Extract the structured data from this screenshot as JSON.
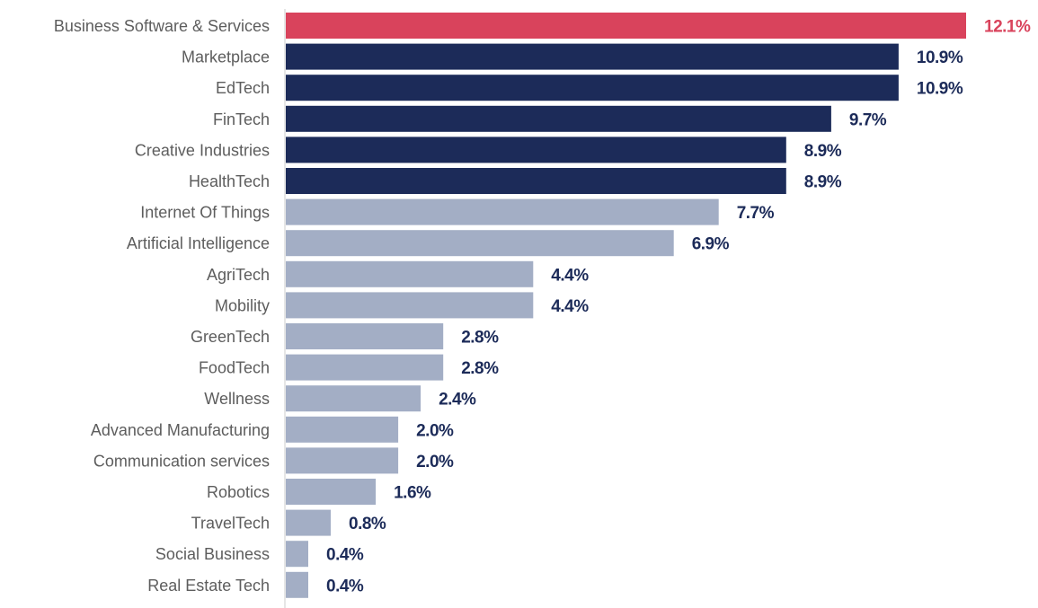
{
  "chart_data": {
    "type": "bar",
    "orientation": "horizontal",
    "categories": [
      "Business Software & Services",
      "Marketplace",
      "EdTech",
      "FinTech",
      "Creative Industries",
      "HealthTech",
      "Internet Of Things",
      "Artificial Intelligence",
      "AgriTech",
      "Mobility",
      "GreenTech",
      "FoodTech",
      "Wellness",
      "Advanced Manufacturing",
      "Communication services",
      "Robotics",
      "TravelTech",
      "Social Business",
      "Real Estate Tech"
    ],
    "values": [
      12.1,
      10.9,
      10.9,
      9.7,
      8.9,
      8.9,
      7.7,
      6.9,
      4.4,
      4.4,
      2.8,
      2.8,
      2.4,
      2.0,
      2.0,
      1.6,
      0.8,
      0.4,
      0.4
    ],
    "value_labels": [
      "12.1%",
      "10.9%",
      "10.9%",
      "9.7%",
      "8.9%",
      "8.9%",
      "7.7%",
      "6.9%",
      "4.4%",
      "4.4%",
      "2.8%",
      "2.8%",
      "2.4%",
      "2.0%",
      "2.0%",
      "1.6%",
      "0.8%",
      "0.4%",
      "0.4%"
    ],
    "tiers": [
      "highlight",
      "top",
      "top",
      "top",
      "top",
      "top",
      "rest",
      "rest",
      "rest",
      "rest",
      "rest",
      "rest",
      "rest",
      "rest",
      "rest",
      "rest",
      "rest",
      "rest",
      "rest"
    ],
    "colors": {
      "highlight": "#d9435c",
      "top": "#1c2b59",
      "rest": "#a3aec5",
      "category_text": "#5d5d5d",
      "axis_line": "#cccccc"
    },
    "title": "",
    "xlabel": "",
    "ylabel": "",
    "xlim": [
      0,
      12.1
    ],
    "grid": false,
    "legend": "none"
  }
}
